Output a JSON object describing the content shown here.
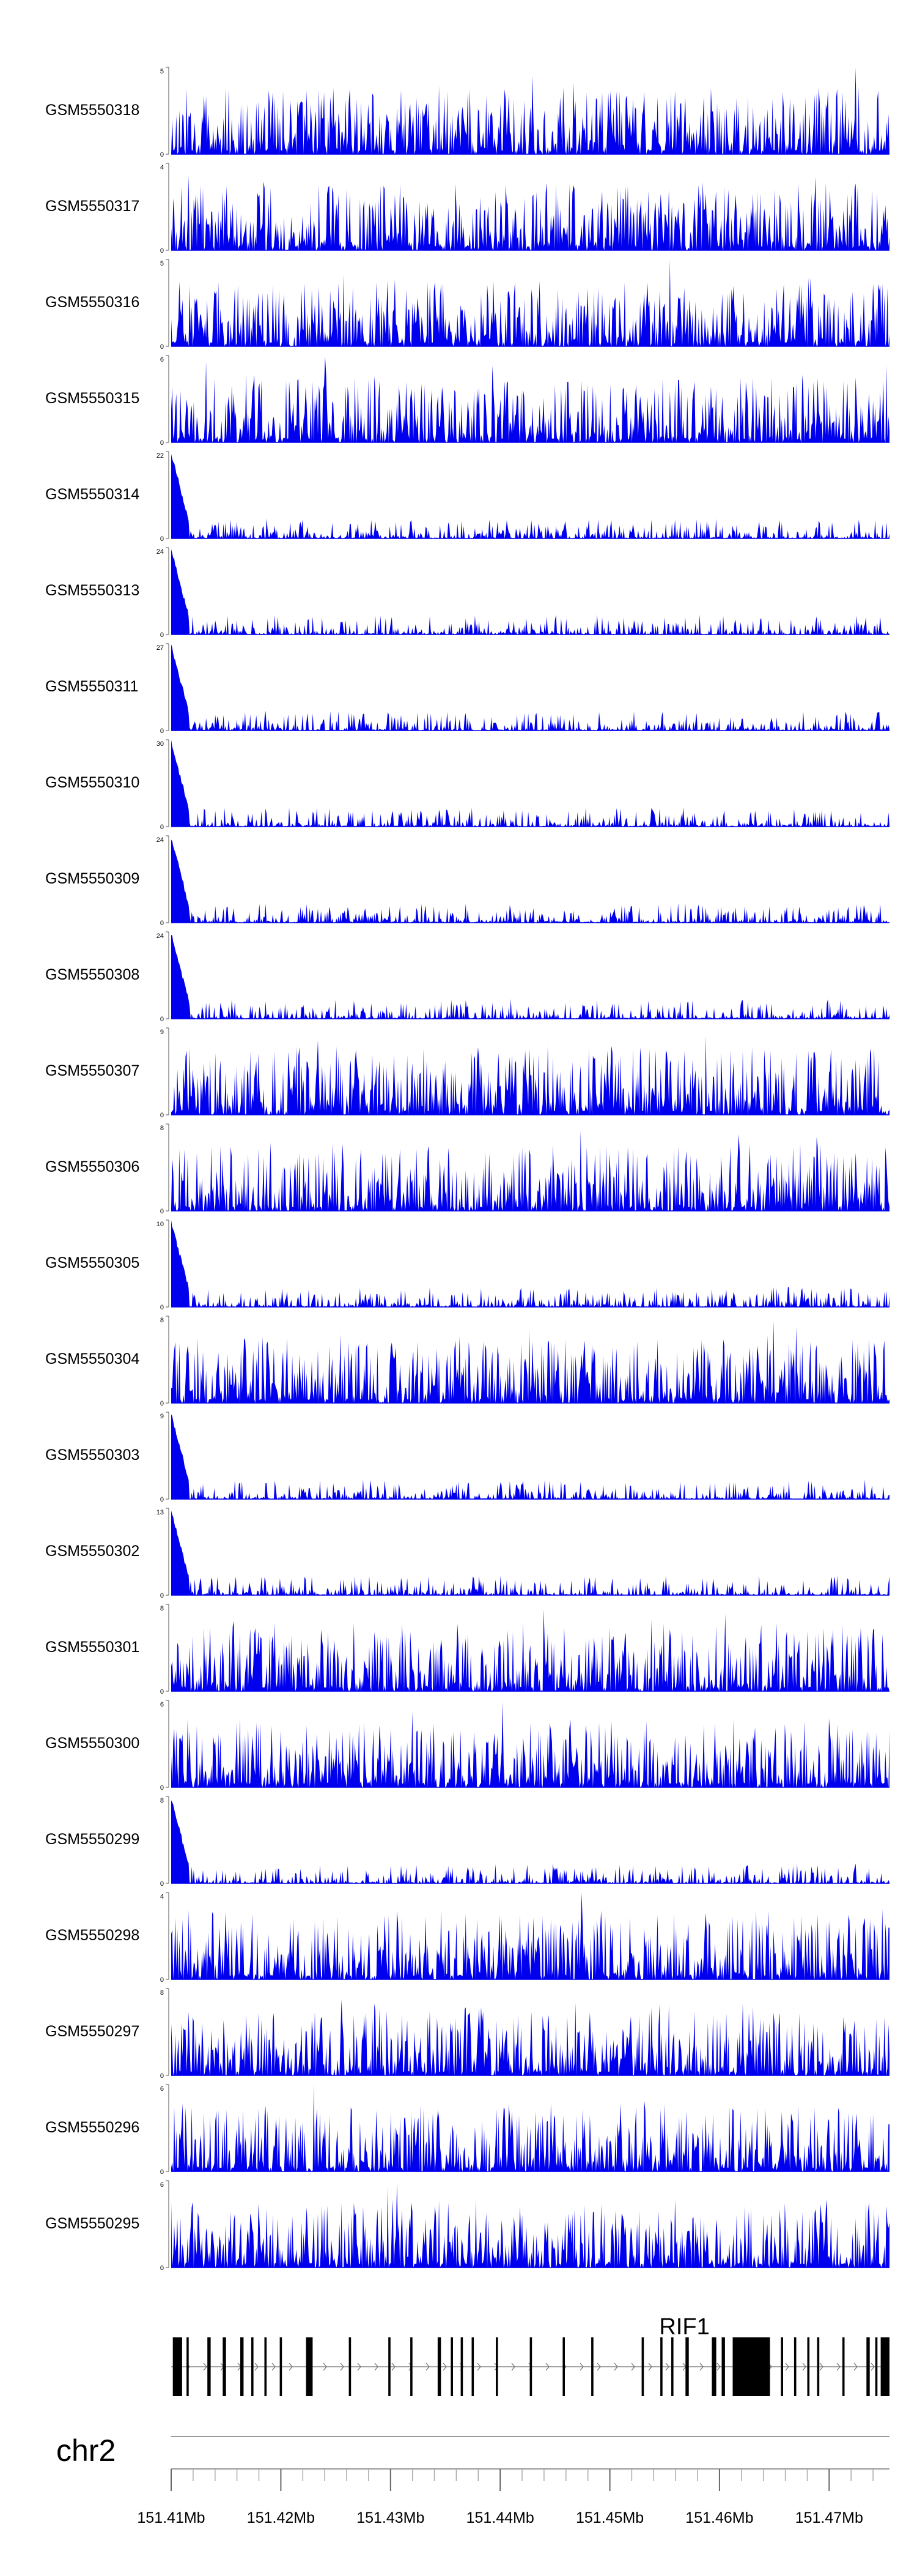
{
  "chart_data": {
    "type": "area",
    "chromosome": "chr2",
    "gene": "RIF1",
    "series_color": "#0000ee",
    "x_ticks": [
      "151.41Mb",
      "151.42Mb",
      "151.43Mb",
      "151.44Mb",
      "151.45Mb",
      "151.46Mb",
      "151.47Mb"
    ],
    "x_tick_values": [
      151.41,
      151.42,
      151.43,
      151.44,
      151.45,
      151.46,
      151.47
    ],
    "xlim": [
      151.41,
      151.4755
    ],
    "minor_tick_step": 0.002,
    "tracks": [
      {
        "name": "GSM5550318",
        "ymax": 5,
        "ymax_label": "5",
        "ymin_label": "0",
        "peak_fraction": 0.22
      },
      {
        "name": "GSM5550317",
        "ymax": 4,
        "ymax_label": "4",
        "ymin_label": "0",
        "peak_fraction": 0.27
      },
      {
        "name": "GSM5550316",
        "ymax": 5,
        "ymax_label": "5",
        "ymin_label": "0",
        "peak_fraction": 0.22
      },
      {
        "name": "GSM5550315",
        "ymax": 6,
        "ymax_label": "6",
        "ymin_label": "0",
        "peak_fraction": 0.2
      },
      {
        "name": "GSM5550314",
        "ymax": 22,
        "ymax_label": "22",
        "ymin_label": "0",
        "peak_fraction": 0.95
      },
      {
        "name": "GSM5550313",
        "ymax": 24,
        "ymax_label": "24",
        "ymin_label": "0",
        "peak_fraction": 0.95
      },
      {
        "name": "GSM5550311",
        "ymax": 27,
        "ymax_label": "27",
        "ymin_label": "0",
        "peak_fraction": 0.95
      },
      {
        "name": "GSM5550310",
        "ymax": 30,
        "ymax_label": "30",
        "ymin_label": "0",
        "peak_fraction": 0.95
      },
      {
        "name": "GSM5550309",
        "ymax": 24,
        "ymax_label": "24",
        "ymin_label": "0",
        "peak_fraction": 0.95
      },
      {
        "name": "GSM5550308",
        "ymax": 24,
        "ymax_label": "24",
        "ymin_label": "0",
        "peak_fraction": 0.95
      },
      {
        "name": "GSM5550307",
        "ymax": 9,
        "ymax_label": "9",
        "ymin_label": "0",
        "peak_fraction": 0.25
      },
      {
        "name": "GSM5550306",
        "ymax": 8,
        "ymax_label": "8",
        "ymin_label": "0",
        "peak_fraction": 0.25
      },
      {
        "name": "GSM5550305",
        "ymax": 10,
        "ymax_label": "10",
        "ymin_label": "0",
        "peak_fraction": 0.95
      },
      {
        "name": "GSM5550304",
        "ymax": 8,
        "ymax_label": "8",
        "ymin_label": "0",
        "peak_fraction": 0.25
      },
      {
        "name": "GSM5550303",
        "ymax": 9,
        "ymax_label": "9",
        "ymin_label": "0",
        "peak_fraction": 0.95
      },
      {
        "name": "GSM5550302",
        "ymax": 13,
        "ymax_label": "13",
        "ymin_label": "0",
        "peak_fraction": 0.95
      },
      {
        "name": "GSM5550301",
        "ymax": 8,
        "ymax_label": "8",
        "ymin_label": "0",
        "peak_fraction": 0.25
      },
      {
        "name": "GSM5550300",
        "ymax": 6,
        "ymax_label": "6",
        "ymin_label": "0",
        "peak_fraction": 0.25
      },
      {
        "name": "GSM5550299",
        "ymax": 8,
        "ymax_label": "8",
        "ymin_label": "0",
        "peak_fraction": 0.95
      },
      {
        "name": "GSM5550298",
        "ymax": 4,
        "ymax_label": "4",
        "ymin_label": "0",
        "peak_fraction": 0.25
      },
      {
        "name": "GSM5550297",
        "ymax": 8,
        "ymax_label": "8",
        "ymin_label": "0",
        "peak_fraction": 0.25
      },
      {
        "name": "GSM5550296",
        "ymax": 6,
        "ymax_label": "6",
        "ymin_label": "0",
        "peak_fraction": 0.25
      },
      {
        "name": "GSM5550295",
        "ymax": 6,
        "ymax_label": "6",
        "ymin_label": "0",
        "peak_fraction": 0.25
      }
    ],
    "exons_mb": [
      [
        151.41015,
        151.411
      ],
      [
        151.4114,
        151.4116
      ],
      [
        151.4133,
        151.4136
      ],
      [
        151.4147,
        151.415
      ],
      [
        151.4163,
        151.4166
      ],
      [
        151.4173,
        151.4175
      ],
      [
        151.4185,
        151.4187
      ],
      [
        151.4199,
        151.4201
      ],
      [
        151.4223,
        151.4229
      ],
      [
        151.4262,
        151.4264
      ],
      [
        151.4298,
        151.43
      ],
      [
        151.4318,
        151.432
      ],
      [
        151.4343,
        151.4346
      ],
      [
        151.4355,
        151.4357
      ],
      [
        151.4364,
        151.4366
      ],
      [
        151.4374,
        151.4376
      ],
      [
        151.4396,
        151.4398
      ],
      [
        151.4427,
        151.4429
      ],
      [
        151.4457,
        151.4459
      ],
      [
        151.4483,
        151.4485
      ],
      [
        151.4529,
        151.4531
      ],
      [
        151.4546,
        151.4548
      ],
      [
        151.4556,
        151.4558
      ],
      [
        151.4569,
        151.4572
      ],
      [
        151.4593,
        151.4597
      ],
      [
        151.4602,
        151.4605
      ],
      [
        151.4612,
        151.4646
      ],
      [
        151.4656,
        151.4658
      ],
      [
        151.4668,
        151.467
      ],
      [
        151.468,
        151.4682
      ],
      [
        151.4689,
        151.4691
      ],
      [
        151.4712,
        151.4714
      ],
      [
        151.4734,
        151.4737
      ],
      [
        151.4742,
        151.4744
      ],
      [
        151.4747,
        151.4755
      ]
    ]
  }
}
